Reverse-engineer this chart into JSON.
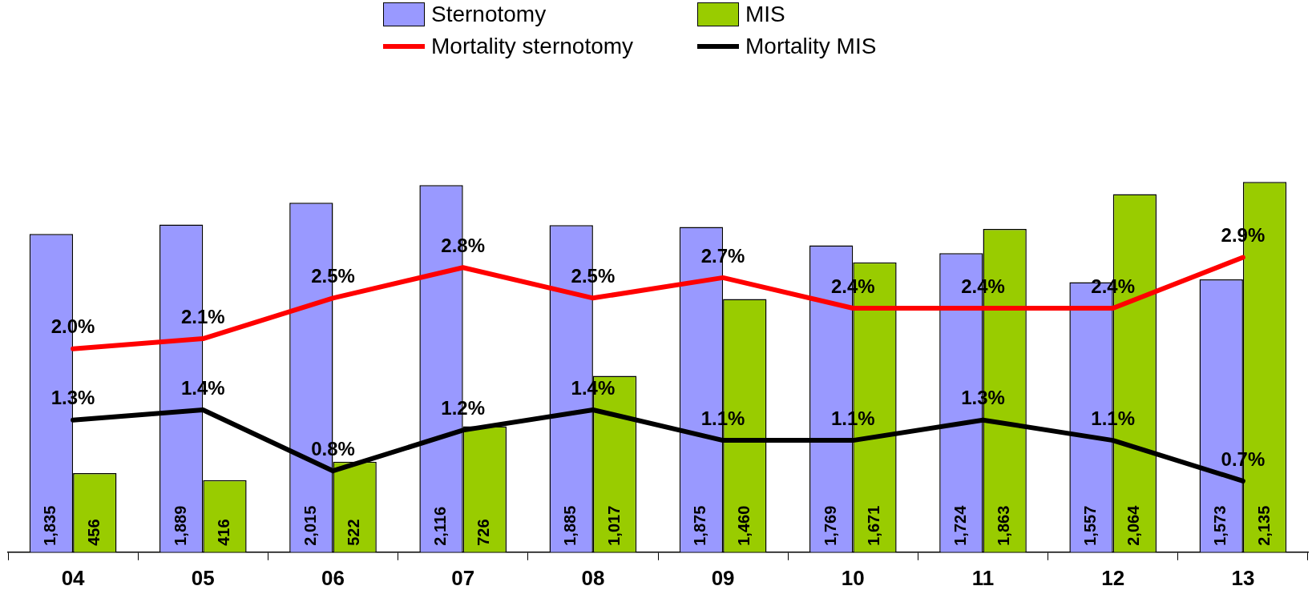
{
  "chart_data": {
    "type": "bar",
    "categories": [
      "04",
      "05",
      "06",
      "07",
      "08",
      "09",
      "10",
      "11",
      "12",
      "13"
    ],
    "series": [
      {
        "name": "Sternotomy",
        "color": "#9999ff",
        "values": [
          1835,
          1889,
          2015,
          2116,
          1885,
          1875,
          1769,
          1724,
          1557,
          1573
        ],
        "value_labels": [
          "1,835",
          "1,889",
          "2,015",
          "2,116",
          "1,885",
          "1,875",
          "1,769",
          "1,724",
          "1,557",
          "1,573"
        ]
      },
      {
        "name": "MIS",
        "color": "#99cc00",
        "values": [
          456,
          416,
          522,
          726,
          1017,
          1460,
          1671,
          1863,
          2064,
          2135
        ],
        "value_labels": [
          "456",
          "416",
          "522",
          "726",
          "1,017",
          "1,460",
          "1,671",
          "1,863",
          "2,064",
          "2,135"
        ]
      },
      {
        "name": "Mortality sternotomy",
        "type": "line",
        "axis": "y2",
        "color": "#ff0000",
        "values": [
          2.0,
          2.1,
          2.5,
          2.8,
          2.5,
          2.7,
          2.4,
          2.4,
          2.4,
          2.9
        ],
        "value_labels": [
          "2.0%",
          "2.1%",
          "2.5%",
          "2.8%",
          "2.5%",
          "2.7%",
          "2.4%",
          "2.4%",
          "2.4%",
          "2.9%"
        ]
      },
      {
        "name": "Mortality MIS",
        "type": "line",
        "axis": "y2",
        "color": "#000000",
        "values": [
          1.3,
          1.4,
          0.8,
          1.2,
          1.4,
          1.1,
          1.1,
          1.3,
          1.1,
          0.7
        ],
        "value_labels": [
          "1.3%",
          "1.4%",
          "0.8%",
          "1.2%",
          "1.4%",
          "1.1%",
          "1.1%",
          "1.3%",
          "1.1%",
          "0.7%"
        ]
      }
    ],
    "legend": "top",
    "grid": false
  }
}
